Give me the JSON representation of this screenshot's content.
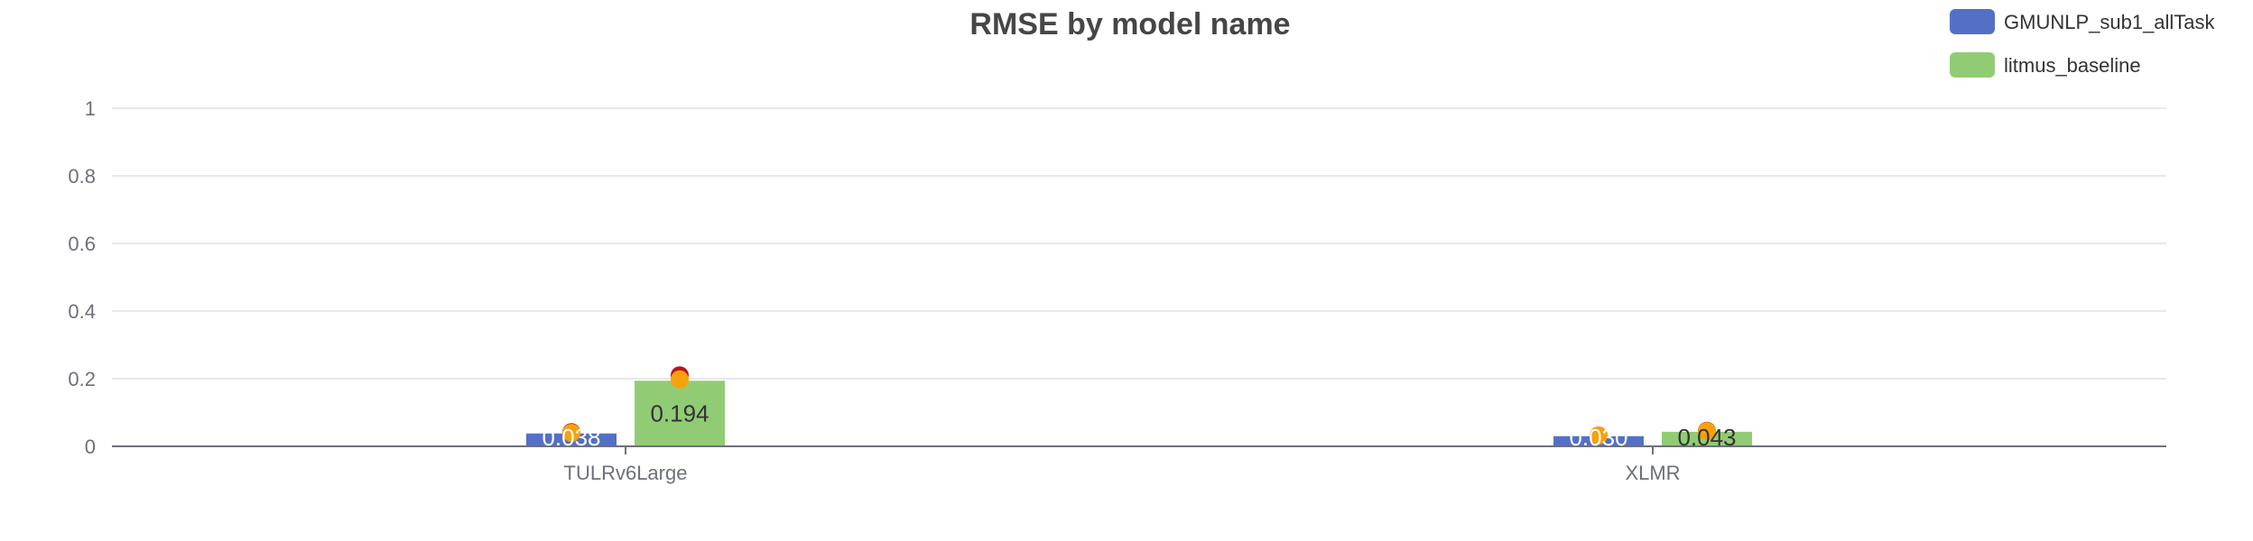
{
  "chart_data": {
    "type": "bar",
    "title": "RMSE by model name",
    "xlabel": "",
    "ylabel": "",
    "categories": [
      "TULRv6Large",
      "XLMR"
    ],
    "series": [
      {
        "name": "GMUNLP_sub1_allTask",
        "color": "#5470c6",
        "values": [
          0.038,
          0.03
        ],
        "labels": [
          "0.038",
          "0.030"
        ],
        "markers": [
          [
            0.042,
            0.04
          ],
          [
            0.032,
            0.032
          ]
        ]
      },
      {
        "name": "litmus_baseline",
        "color": "#91cc75",
        "values": [
          0.194,
          0.043
        ],
        "labels": [
          "0.194",
          "0.043"
        ],
        "markers": [
          [
            0.21,
            0.198
          ],
          [
            0.046,
            0.045
          ]
        ]
      }
    ],
    "marker_colors": [
      "#b8151e",
      "#f9a10c"
    ],
    "ylim": [
      0,
      1
    ],
    "yticks": [
      "0",
      "0.2",
      "0.4",
      "0.6",
      "0.8",
      "1"
    ],
    "grid": true,
    "legend_position": "top-right"
  }
}
